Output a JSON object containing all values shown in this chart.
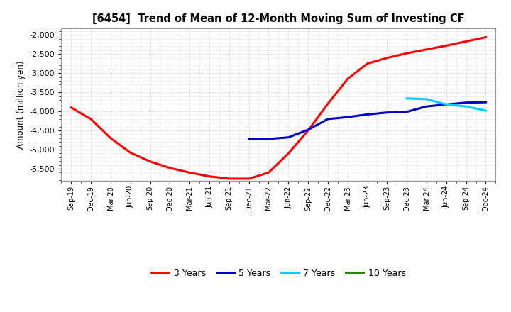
{
  "title": "[6454]  Trend of Mean of 12-Month Moving Sum of Investing CF",
  "ylabel": "Amount (million yen)",
  "ylim": [
    -5820,
    -1820
  ],
  "yticks": [
    -5500,
    -5000,
    -4500,
    -4000,
    -3500,
    -3000,
    -2500,
    -2000
  ],
  "background_color": "#ffffff",
  "grid_color": "#bbbbbb",
  "series": {
    "3yr": {
      "color": "#ff0000",
      "label": "3 Years",
      "x": [
        "Sep-19",
        "Dec-19",
        "Mar-20",
        "Jun-20",
        "Sep-20",
        "Dec-20",
        "Mar-21",
        "Jun-21",
        "Sep-21",
        "Dec-21",
        "Mar-22",
        "Jun-22",
        "Sep-22",
        "Dec-22",
        "Mar-23",
        "Jun-23",
        "Sep-23",
        "Dec-23",
        "Mar-24",
        "Jun-24",
        "Sep-24",
        "Dec-24"
      ],
      "y": [
        -3900,
        -4200,
        -4700,
        -5080,
        -5310,
        -5480,
        -5600,
        -5700,
        -5760,
        -5760,
        -5600,
        -5100,
        -4500,
        -3800,
        -3150,
        -2750,
        -2600,
        -2480,
        -2380,
        -2280,
        -2170,
        -2060
      ]
    },
    "5yr": {
      "color": "#0000cc",
      "label": "5 Years",
      "x": [
        "Dec-21",
        "Mar-22",
        "Jun-22",
        "Sep-22",
        "Dec-22",
        "Mar-23",
        "Jun-23",
        "Sep-23",
        "Dec-23",
        "Mar-24",
        "Jun-24",
        "Sep-24",
        "Dec-24"
      ],
      "y": [
        -4720,
        -4720,
        -4680,
        -4480,
        -4200,
        -4150,
        -4080,
        -4030,
        -4010,
        -3870,
        -3820,
        -3770,
        -3760
      ]
    },
    "7yr": {
      "color": "#00ccff",
      "label": "7 Years",
      "x": [
        "Dec-23",
        "Mar-24",
        "Jun-24",
        "Sep-24",
        "Dec-24"
      ],
      "y": [
        -3660,
        -3680,
        -3820,
        -3870,
        -3980
      ]
    },
    "10yr": {
      "color": "#228800",
      "label": "10 Years",
      "x": [],
      "y": []
    }
  },
  "x_labels": [
    "Sep-19",
    "Dec-19",
    "Mar-20",
    "Jun-20",
    "Sep-20",
    "Dec-20",
    "Mar-21",
    "Jun-21",
    "Sep-21",
    "Dec-21",
    "Mar-22",
    "Jun-22",
    "Sep-22",
    "Dec-22",
    "Mar-23",
    "Jun-23",
    "Sep-23",
    "Dec-23",
    "Mar-24",
    "Jun-24",
    "Sep-24",
    "Dec-24"
  ]
}
